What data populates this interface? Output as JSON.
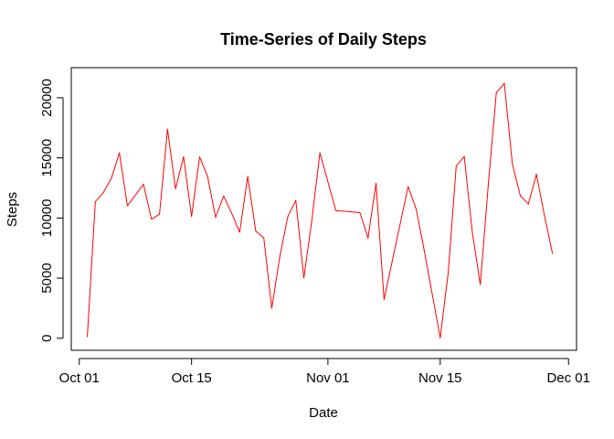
{
  "chart_data": {
    "type": "line",
    "title": "Time-Series of Daily Steps",
    "xlabel": "Date",
    "ylabel": "Steps",
    "series_color": "#ff0000",
    "x_ticks": [
      {
        "label": "Oct 01",
        "date": "2012-10-01"
      },
      {
        "label": "Oct 15",
        "date": "2012-10-15"
      },
      {
        "label": "Nov 01",
        "date": "2012-11-01"
      },
      {
        "label": "Nov 15",
        "date": "2012-11-15"
      },
      {
        "label": "Dec 01",
        "date": "2012-12-01"
      }
    ],
    "y_ticks": [
      0,
      5000,
      10000,
      15000,
      20000
    ],
    "xlim": [
      "2012-09-30",
      "2012-12-02"
    ],
    "ylim": [
      -1000,
      22500
    ],
    "grid": false,
    "x": [
      "2012-10-02",
      "2012-10-03",
      "2012-10-04",
      "2012-10-05",
      "2012-10-06",
      "2012-10-07",
      "2012-10-09",
      "2012-10-10",
      "2012-10-11",
      "2012-10-12",
      "2012-10-13",
      "2012-10-14",
      "2012-10-15",
      "2012-10-16",
      "2012-10-17",
      "2012-10-18",
      "2012-10-19",
      "2012-10-20",
      "2012-10-21",
      "2012-10-22",
      "2012-10-23",
      "2012-10-24",
      "2012-10-25",
      "2012-10-26",
      "2012-10-27",
      "2012-10-28",
      "2012-10-29",
      "2012-10-30",
      "2012-10-31",
      "2012-11-02",
      "2012-11-03",
      "2012-11-05",
      "2012-11-06",
      "2012-11-07",
      "2012-11-08",
      "2012-11-11",
      "2012-11-12",
      "2012-11-13",
      "2012-11-15",
      "2012-11-16",
      "2012-11-17",
      "2012-11-18",
      "2012-11-19",
      "2012-11-20",
      "2012-11-21",
      "2012-11-22",
      "2012-11-23",
      "2012-11-24",
      "2012-11-25",
      "2012-11-26",
      "2012-11-27",
      "2012-11-28",
      "2012-11-29"
    ],
    "y": [
      126,
      11352,
      12116,
      13294,
      15420,
      11015,
      12811,
      9900,
      10304,
      17382,
      12426,
      15098,
      10139,
      15084,
      13452,
      10056,
      11829,
      10395,
      8821,
      13460,
      8918,
      8355,
      2492,
      6778,
      10119,
      11458,
      5018,
      9819,
      15414,
      10600,
      10571,
      10439,
      8334,
      12883,
      3219,
      12608,
      10765,
      7336,
      41,
      5441,
      14339,
      15110,
      8841,
      4472,
      12787,
      20427,
      21194,
      14478,
      11834,
      11162,
      13646,
      10183,
      7047
    ]
  }
}
